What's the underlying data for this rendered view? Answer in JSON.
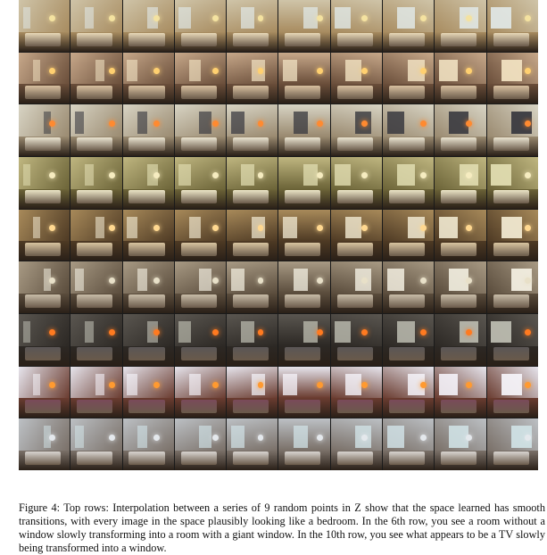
{
  "caption": {
    "text": "Figure 4: Top rows: Interpolation between a series of 9 random points in Z show that the space learned has smooth transitions, with every image in the space plausibly looking like a bedroom. In the 6th row, you see a room without a window slowly transforming into a room with a giant window. In the 10th row, you see what appears to be a TV slowly being transformed into a window."
  },
  "grid": {
    "rows": [
      {
        "wall": "#cfc4a8",
        "floor": "#a88c60",
        "win": "#dfe6e4",
        "bed": "#e8d8b8",
        "lamp": "#f4e2a0"
      },
      {
        "wall": "#c7a88a",
        "floor": "#6a4e3a",
        "win": "#f0e0c0",
        "bed": "#d8c0a0",
        "lamp": "#ffd070"
      },
      {
        "wall": "#d8d4c4",
        "floor": "#9a8a70",
        "win": "#3a3a40",
        "bed": "#eae4d0",
        "lamp": "#ff8a30"
      },
      {
        "wall": "#bfb680",
        "floor": "#6c6438",
        "win": "#e0dcb0",
        "bed": "#ece6c8",
        "lamp": "#f6ecc0"
      },
      {
        "wall": "#a88a5a",
        "floor": "#4e3a24",
        "win": "#f0e8d0",
        "bed": "#d8c4a0",
        "lamp": "#ffd890"
      },
      {
        "wall": "#a89a84",
        "floor": "#5a4c3c",
        "win": "#f2eee0",
        "bed": "#c8bca8",
        "lamp": "#e8e0c8"
      },
      {
        "wall": "#5a5650",
        "floor": "#2c2824",
        "win": "#bcbcb0",
        "bed": "#5a5656",
        "lamp": "#ff7a20"
      },
      {
        "wall": "#e6e4ec",
        "floor": "#6a3c30",
        "win": "#f4f2f8",
        "bed": "#7a4a5a",
        "lamp": "#ff9a30"
      },
      {
        "wall": "#bcc0c4",
        "floor": "#7a7068",
        "win": "#cfe0e4",
        "bed": "#d8d4d0",
        "lamp": "#e4e8ec"
      }
    ],
    "columns": 10
  }
}
